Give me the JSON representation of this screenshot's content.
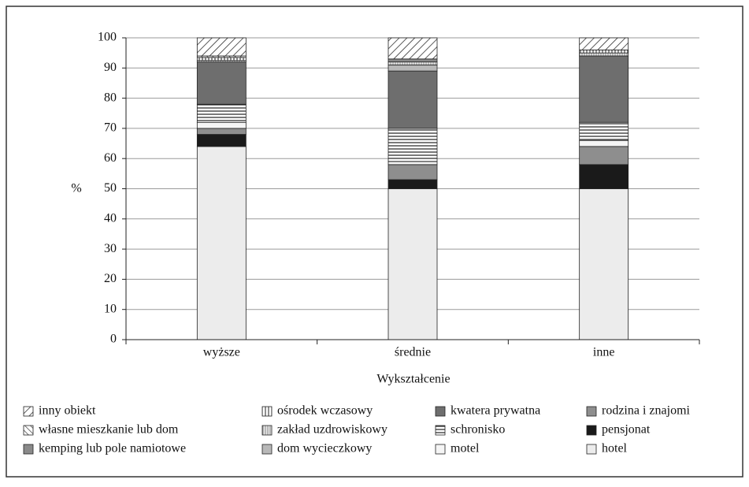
{
  "chart_data": {
    "type": "stacked_bar",
    "categories": [
      "wyższe",
      "średnie",
      "inne"
    ],
    "x_label": "Wykształcenie",
    "y_label": "%",
    "ylim": [
      0,
      100
    ],
    "yticks": [
      0,
      10,
      20,
      30,
      40,
      50,
      60,
      70,
      80,
      90,
      100
    ],
    "grid": true,
    "series": [
      {
        "name": "hotel",
        "color": "#ececec",
        "values": [
          64,
          50,
          50
        ]
      },
      {
        "name": "pensjonat",
        "color": "#1a1a1a",
        "values": [
          4,
          3,
          8
        ]
      },
      {
        "name": "rodzina i znajomi",
        "color": "#8e8e8e",
        "values": [
          2,
          5,
          6
        ]
      },
      {
        "name": "motel",
        "color": "#f5f5f5",
        "values": [
          2,
          1,
          2
        ]
      },
      {
        "name": "schronisko",
        "color": "#ffffff",
        "pattern": "horizontal",
        "values": [
          6,
          11,
          6
        ]
      },
      {
        "name": "kwatera prywatna",
        "color": "#6e6e6e",
        "values": [
          14,
          19,
          22
        ]
      },
      {
        "name": "dom wycieczkowy",
        "color": "#b8b8b8",
        "values": [
          0,
          2,
          0
        ]
      },
      {
        "name": "zakład uzdrowiskowy",
        "color": "#cfcfcf",
        "pattern": "vertical-light",
        "values": [
          0.5,
          1,
          1
        ]
      },
      {
        "name": "ośrodek wczasowy",
        "color": "#ffffff",
        "pattern": "vertical",
        "values": [
          1,
          0,
          1
        ]
      },
      {
        "name": "kemping lub pole namiotowe",
        "color": "#8a8a8a",
        "values": [
          0,
          1,
          0
        ]
      },
      {
        "name": "własne mieszkanie lub dom",
        "color": "#ffffff",
        "pattern": "backslash",
        "values": [
          0.5,
          0,
          0
        ]
      },
      {
        "name": "inny obiekt",
        "color": "#ffffff",
        "pattern": "slash",
        "values": [
          6,
          7,
          4
        ]
      }
    ]
  }
}
